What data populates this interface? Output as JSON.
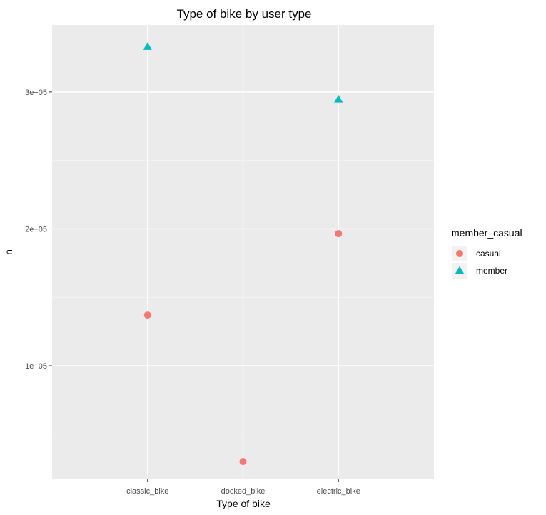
{
  "chart_data": {
    "type": "scatter",
    "title": "Type of bike by user type",
    "xlabel": "Type of bike",
    "ylabel": "n",
    "categories": [
      "classic_bike",
      "docked_bike",
      "electric_bike"
    ],
    "ylim": [
      17000,
      349000
    ],
    "yticks": [
      100000,
      200000,
      300000
    ],
    "ytick_labels": [
      "1e+05",
      "2e+05",
      "3e+05"
    ],
    "grid": true,
    "legend": {
      "title": "member_casual",
      "position": "right"
    },
    "series": [
      {
        "name": "casual",
        "shape": "circle",
        "color": "#F8766D",
        "values": [
          137000,
          30000,
          196500
        ]
      },
      {
        "name": "member",
        "shape": "triangle",
        "color": "#00BFC4",
        "values": [
          333000,
          null,
          294500
        ]
      }
    ]
  }
}
